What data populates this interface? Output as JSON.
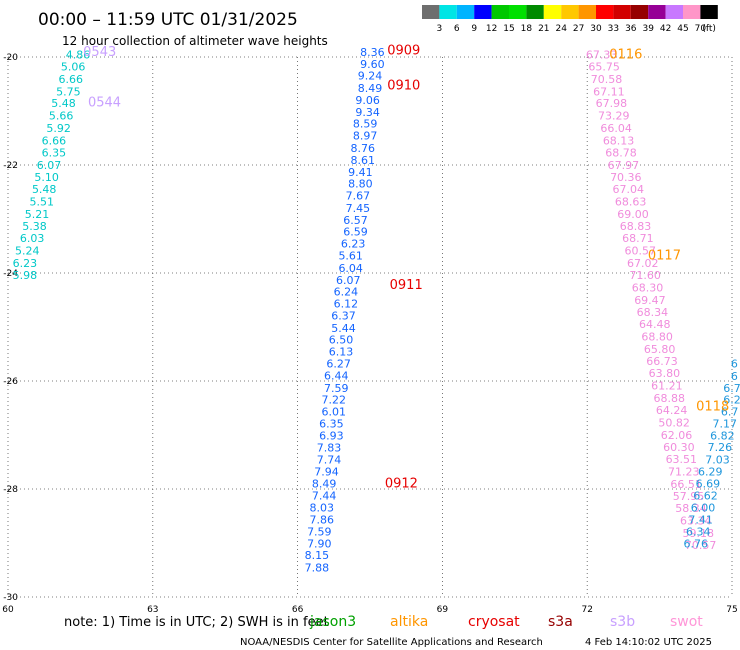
{
  "header": {
    "title": "00:00 – 11:59 UTC 01/31/2025",
    "subtitle": "12 hour collection of altimeter wave heights"
  },
  "colorbar": {
    "labels": [
      "3",
      "6",
      "9",
      "12",
      "15",
      "18",
      "21",
      "24",
      "27",
      "30",
      "33",
      "36",
      "39",
      "42",
      "45",
      "70",
      "(ft)"
    ],
    "colors": [
      "#6e6e6e",
      "#00e5e5",
      "#00b4ff",
      "#0000ff",
      "#00c800",
      "#00e000",
      "#008a00",
      "#ffff00",
      "#ffc800",
      "#ff9600",
      "#ff0000",
      "#d20000",
      "#960000",
      "#960096",
      "#c878ff",
      "#ff96c8",
      "#000000"
    ]
  },
  "footer": {
    "note": "note:  1) Time is in UTC;  2) SWH is in feet",
    "satellites": [
      {
        "name": "jason3",
        "color": "#00a000"
      },
      {
        "name": "altika",
        "color": "#ff9600"
      },
      {
        "name": "cryosat",
        "color": "#e60000"
      },
      {
        "name": "s3a",
        "color": "#960000"
      },
      {
        "name": "s3b",
        "color": "#c8a0ff"
      },
      {
        "name": "swot",
        "color": "#ff96d8"
      }
    ],
    "credit": "NOAA/NESDIS Center for Satellite Applications and Research",
    "timestamp": "4 Feb 14:10:02 UTC 2025"
  },
  "chart_data": {
    "type": "scatter",
    "xlim": [
      60,
      75
    ],
    "ylim": [
      -30,
      -20
    ],
    "x_ticks": [
      "60",
      "63",
      "66",
      "69",
      "72",
      "75"
    ],
    "y_ticks": [
      "-20",
      "-22",
      "-24",
      "-26",
      "-28",
      "-30"
    ],
    "grid": true,
    "series": [
      {
        "color": "#00c8c8",
        "points": [
          {
            "x": 61.45,
            "y": -20.03,
            "v": "4.86"
          },
          {
            "x": 61.35,
            "y": -20.25,
            "v": "5.06"
          },
          {
            "x": 61.3,
            "y": -20.48,
            "v": "6.66"
          },
          {
            "x": 61.25,
            "y": -20.71,
            "v": "5.75"
          },
          {
            "x": 61.15,
            "y": -20.93,
            "v": "5.48"
          },
          {
            "x": 61.1,
            "y": -21.16,
            "v": "5.66"
          },
          {
            "x": 61.05,
            "y": -21.39,
            "v": "5.92"
          },
          {
            "x": 60.95,
            "y": -21.62,
            "v": "6.66"
          },
          {
            "x": 60.95,
            "y": -21.84,
            "v": "6.35"
          },
          {
            "x": 60.85,
            "y": -22.07,
            "v": "6.07"
          },
          {
            "x": 60.8,
            "y": -22.3,
            "v": "5.10"
          },
          {
            "x": 60.75,
            "y": -22.52,
            "v": "5.48"
          },
          {
            "x": 60.7,
            "y": -22.75,
            "v": "5.51"
          },
          {
            "x": 60.6,
            "y": -22.98,
            "v": "5.21"
          },
          {
            "x": 60.55,
            "y": -23.2,
            "v": "5.38"
          },
          {
            "x": 60.5,
            "y": -23.43,
            "v": "6.03"
          },
          {
            "x": 60.4,
            "y": -23.66,
            "v": "5.24"
          },
          {
            "x": 60.35,
            "y": -23.89,
            "v": "6.23"
          },
          {
            "x": 60.35,
            "y": -24.11,
            "v": "5.98"
          }
        ]
      },
      {
        "color": "#1464ff",
        "points": [
          {
            "x": 67.55,
            "y": -19.98,
            "v": "8.36"
          },
          {
            "x": 67.55,
            "y": -20.2,
            "v": "9.60"
          },
          {
            "x": 67.5,
            "y": -20.42,
            "v": "9.24"
          },
          {
            "x": 67.5,
            "y": -20.65,
            "v": "8.49"
          },
          {
            "x": 67.45,
            "y": -20.87,
            "v": "9.06"
          },
          {
            "x": 67.45,
            "y": -21.09,
            "v": "9.34"
          },
          {
            "x": 67.4,
            "y": -21.31,
            "v": "8.59"
          },
          {
            "x": 67.4,
            "y": -21.53,
            "v": "8.97"
          },
          {
            "x": 67.35,
            "y": -21.76,
            "v": "8.76"
          },
          {
            "x": 67.35,
            "y": -21.98,
            "v": "8.61"
          },
          {
            "x": 67.3,
            "y": -22.2,
            "v": "9.41"
          },
          {
            "x": 67.3,
            "y": -22.42,
            "v": "8.80"
          },
          {
            "x": 67.25,
            "y": -22.64,
            "v": "7.67"
          },
          {
            "x": 67.25,
            "y": -22.87,
            "v": "7.45"
          },
          {
            "x": 67.2,
            "y": -23.09,
            "v": "6.57"
          },
          {
            "x": 67.2,
            "y": -23.31,
            "v": "6.59"
          },
          {
            "x": 67.15,
            "y": -23.53,
            "v": "6.23"
          },
          {
            "x": 67.1,
            "y": -23.75,
            "v": "5.61"
          },
          {
            "x": 67.1,
            "y": -23.98,
            "v": "6.04"
          },
          {
            "x": 67.05,
            "y": -24.2,
            "v": "6.07"
          },
          {
            "x": 67.0,
            "y": -24.42,
            "v": "6.24"
          },
          {
            "x": 67.0,
            "y": -24.64,
            "v": "6.12"
          },
          {
            "x": 66.95,
            "y": -24.86,
            "v": "6.37"
          },
          {
            "x": 66.95,
            "y": -25.09,
            "v": "5.44"
          },
          {
            "x": 66.9,
            "y": -25.31,
            "v": "6.50"
          },
          {
            "x": 66.9,
            "y": -25.53,
            "v": "6.13"
          },
          {
            "x": 66.85,
            "y": -25.75,
            "v": "6.27"
          },
          {
            "x": 66.8,
            "y": -25.97,
            "v": "6.44"
          },
          {
            "x": 66.8,
            "y": -26.2,
            "v": "7.59"
          },
          {
            "x": 66.75,
            "y": -26.42,
            "v": "7.22"
          },
          {
            "x": 66.75,
            "y": -26.64,
            "v": "6.01"
          },
          {
            "x": 66.7,
            "y": -26.86,
            "v": "6.35"
          },
          {
            "x": 66.7,
            "y": -27.08,
            "v": "6.93"
          },
          {
            "x": 66.65,
            "y": -27.31,
            "v": "7.83"
          },
          {
            "x": 66.65,
            "y": -27.53,
            "v": "7.74"
          },
          {
            "x": 66.6,
            "y": -27.75,
            "v": "7.94"
          },
          {
            "x": 66.55,
            "y": -27.97,
            "v": "8.49"
          },
          {
            "x": 66.55,
            "y": -28.19,
            "v": "7.44"
          },
          {
            "x": 66.5,
            "y": -28.42,
            "v": "8.03"
          },
          {
            "x": 66.5,
            "y": -28.64,
            "v": "7.86"
          },
          {
            "x": 66.45,
            "y": -28.86,
            "v": "7.59"
          },
          {
            "x": 66.45,
            "y": -29.08,
            "v": "7.90"
          },
          {
            "x": 66.4,
            "y": -29.3,
            "v": "8.15"
          },
          {
            "x": 66.4,
            "y": -29.53,
            "v": "7.88"
          }
        ]
      },
      {
        "color": "#f08cdc",
        "points": [
          {
            "x": 72.3,
            "y": -20.03,
            "v": "67.33"
          },
          {
            "x": 72.35,
            "y": -20.25,
            "v": "65.75"
          },
          {
            "x": 72.4,
            "y": -20.48,
            "v": "70.58"
          },
          {
            "x": 72.45,
            "y": -20.71,
            "v": "67.11"
          },
          {
            "x": 72.5,
            "y": -20.93,
            "v": "67.98"
          },
          {
            "x": 72.55,
            "y": -21.16,
            "v": "73.29"
          },
          {
            "x": 72.6,
            "y": -21.39,
            "v": "66.04"
          },
          {
            "x": 72.65,
            "y": -21.62,
            "v": "68.13"
          },
          {
            "x": 72.7,
            "y": -21.84,
            "v": "68.78"
          },
          {
            "x": 72.75,
            "y": -22.07,
            "v": "67.97"
          },
          {
            "x": 72.8,
            "y": -22.3,
            "v": "70.36"
          },
          {
            "x": 72.85,
            "y": -22.52,
            "v": "67.04"
          },
          {
            "x": 72.9,
            "y": -22.75,
            "v": "68.63"
          },
          {
            "x": 72.95,
            "y": -22.98,
            "v": "69.00"
          },
          {
            "x": 73.0,
            "y": -23.2,
            "v": "68.83"
          },
          {
            "x": 73.05,
            "y": -23.43,
            "v": "68.71"
          },
          {
            "x": 73.1,
            "y": -23.66,
            "v": "60.57"
          },
          {
            "x": 73.15,
            "y": -23.89,
            "v": "67.02"
          },
          {
            "x": 73.2,
            "y": -24.11,
            "v": "71.60"
          },
          {
            "x": 73.25,
            "y": -24.34,
            "v": "68.30"
          },
          {
            "x": 73.3,
            "y": -24.57,
            "v": "69.47"
          },
          {
            "x": 73.35,
            "y": -24.8,
            "v": "68.34"
          },
          {
            "x": 73.4,
            "y": -25.02,
            "v": "64.48"
          },
          {
            "x": 73.45,
            "y": -25.25,
            "v": "68.80"
          },
          {
            "x": 73.5,
            "y": -25.48,
            "v": "65.80"
          },
          {
            "x": 73.55,
            "y": -25.7,
            "v": "66.73"
          },
          {
            "x": 73.6,
            "y": -25.93,
            "v": "63.80"
          },
          {
            "x": 73.65,
            "y": -26.16,
            "v": "61.21"
          },
          {
            "x": 73.7,
            "y": -26.39,
            "v": "68.88"
          },
          {
            "x": 73.75,
            "y": -26.61,
            "v": "64.24"
          },
          {
            "x": 73.8,
            "y": -26.84,
            "v": "50.82"
          },
          {
            "x": 73.85,
            "y": -27.07,
            "v": "62.06"
          },
          {
            "x": 73.9,
            "y": -27.3,
            "v": "60.30"
          },
          {
            "x": 73.95,
            "y": -27.52,
            "v": "63.51"
          },
          {
            "x": 74.0,
            "y": -27.75,
            "v": "71.23"
          },
          {
            "x": 74.05,
            "y": -27.98,
            "v": "66.51"
          },
          {
            "x": 74.1,
            "y": -28.2,
            "v": "57.95"
          },
          {
            "x": 74.15,
            "y": -28.43,
            "v": "58.34"
          },
          {
            "x": 74.25,
            "y": -28.66,
            "v": "63.34"
          },
          {
            "x": 74.3,
            "y": -28.89,
            "v": "59.18"
          },
          {
            "x": 74.35,
            "y": -29.11,
            "v": "70.57"
          }
        ]
      },
      {
        "color": "#1e96dc",
        "points": [
          {
            "x": 75.05,
            "y": -25.75,
            "v": "6"
          },
          {
            "x": 75.05,
            "y": -25.98,
            "v": "6"
          },
          {
            "x": 75.0,
            "y": -26.2,
            "v": "6.7"
          },
          {
            "x": 75.0,
            "y": -26.42,
            "v": "6.2"
          },
          {
            "x": 74.95,
            "y": -26.64,
            "v": "6.7"
          },
          {
            "x": 74.85,
            "y": -26.86,
            "v": "7.17"
          },
          {
            "x": 74.8,
            "y": -27.08,
            "v": "6.82"
          },
          {
            "x": 74.75,
            "y": -27.3,
            "v": "7.26"
          },
          {
            "x": 74.7,
            "y": -27.53,
            "v": "7.03"
          },
          {
            "x": 74.55,
            "y": -27.75,
            "v": "6.29"
          },
          {
            "x": 74.5,
            "y": -27.97,
            "v": "6.69"
          },
          {
            "x": 74.45,
            "y": -28.19,
            "v": "6.62"
          },
          {
            "x": 74.4,
            "y": -28.42,
            "v": "6.00"
          },
          {
            "x": 74.35,
            "y": -28.64,
            "v": "7.41"
          },
          {
            "x": 74.3,
            "y": -28.86,
            "v": "6.34"
          },
          {
            "x": 74.25,
            "y": -29.08,
            "v": "6.76"
          }
        ]
      }
    ],
    "pass_labels": [
      {
        "x": 61.9,
        "y": -19.98,
        "text": "0543",
        "color": "#c8a0ff"
      },
      {
        "x": 62.0,
        "y": -20.92,
        "text": "0544",
        "color": "#c8a0ff"
      },
      {
        "x": 68.2,
        "y": -19.95,
        "text": "0909",
        "color": "#e60000"
      },
      {
        "x": 68.2,
        "y": -20.6,
        "text": "0910",
        "color": "#e60000"
      },
      {
        "x": 68.25,
        "y": -24.3,
        "text": "0911",
        "color": "#e60000"
      },
      {
        "x": 68.15,
        "y": -27.97,
        "text": "0912",
        "color": "#e60000"
      },
      {
        "x": 72.8,
        "y": -20.03,
        "text": "0116",
        "color": "#ff9600"
      },
      {
        "x": 73.6,
        "y": -23.75,
        "text": "0117",
        "color": "#ff9600"
      },
      {
        "x": 74.6,
        "y": -26.55,
        "text": "0118",
        "color": "#ff9600"
      }
    ]
  }
}
